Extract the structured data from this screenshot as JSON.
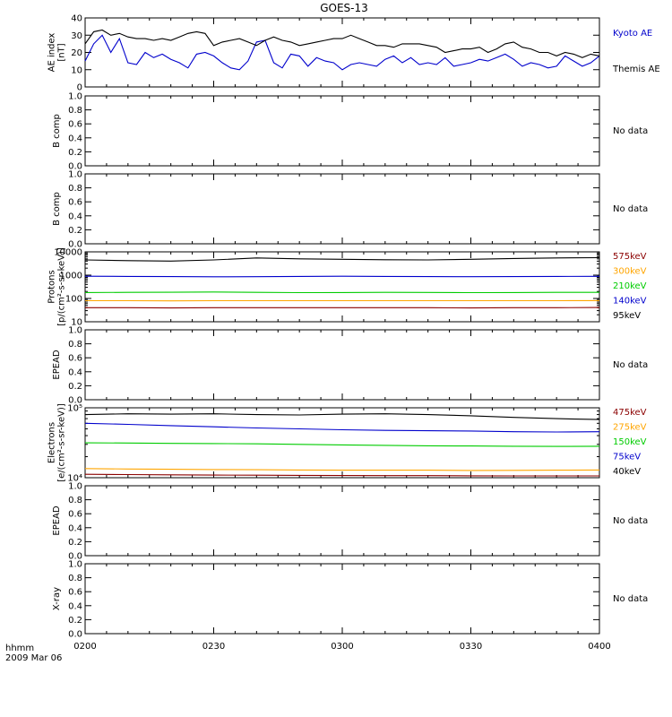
{
  "title": "GOES-13",
  "time_axis": {
    "label_line1": "hhmm",
    "label_line2": "2009 Mar 06",
    "ticks": [
      "0200",
      "0230",
      "0300",
      "0330",
      "0400"
    ],
    "range_minutes": [
      0,
      120
    ]
  },
  "chart_data": [
    {
      "type": "line",
      "panel": "ae",
      "ylabel": [
        "AE index",
        "[nT]"
      ],
      "ylim": [
        0,
        40
      ],
      "yticks": [
        "0",
        "10",
        "20",
        "30",
        "40"
      ],
      "x_minutes": [
        0,
        2,
        4,
        6,
        8,
        10,
        12,
        14,
        16,
        18,
        20,
        22,
        24,
        26,
        28,
        30,
        32,
        34,
        36,
        38,
        40,
        42,
        44,
        46,
        48,
        50,
        52,
        54,
        56,
        58,
        60,
        62,
        64,
        66,
        68,
        70,
        72,
        74,
        76,
        78,
        80,
        82,
        84,
        86,
        88,
        90,
        92,
        94,
        96,
        98,
        100,
        102,
        104,
        106,
        108,
        110,
        112,
        114,
        116,
        118,
        120
      ],
      "series": [
        {
          "name": "Kyoto AE",
          "color": "#0000cc",
          "values": [
            15,
            25,
            30,
            20,
            28,
            14,
            13,
            20,
            17,
            19,
            16,
            14,
            11,
            19,
            20,
            18,
            14,
            11,
            10,
            15,
            26,
            27,
            14,
            11,
            19,
            18,
            12,
            17,
            15,
            14,
            10,
            13,
            14,
            13,
            12,
            16,
            18,
            14,
            17,
            13,
            14,
            13,
            17,
            12,
            13,
            14,
            16,
            15,
            17,
            19,
            16,
            12,
            14,
            13,
            11,
            12,
            18,
            15,
            12,
            14,
            18
          ]
        },
        {
          "name": "Themis AE",
          "color": "#000000",
          "values": [
            25,
            32,
            33,
            30,
            31,
            29,
            28,
            28,
            27,
            28,
            27,
            29,
            31,
            32,
            31,
            24,
            26,
            27,
            28,
            26,
            24,
            27,
            29,
            27,
            26,
            24,
            25,
            26,
            27,
            28,
            28,
            30,
            28,
            26,
            24,
            24,
            23,
            25,
            25,
            25,
            24,
            23,
            20,
            21,
            22,
            22,
            23,
            20,
            22,
            25,
            26,
            23,
            22,
            20,
            20,
            18,
            20,
            19,
            17,
            19,
            18
          ]
        }
      ]
    },
    {
      "type": "line",
      "panel": "b1",
      "ylabel": [
        "B comp"
      ],
      "ylim": [
        0,
        1
      ],
      "yticks": [
        "0.0",
        "0.2",
        "0.4",
        "0.6",
        "0.8",
        "1.0"
      ],
      "status": "No data",
      "series": []
    },
    {
      "type": "line",
      "panel": "b2",
      "ylabel": [
        "B comp"
      ],
      "ylim": [
        0,
        1
      ],
      "yticks": [
        "0.0",
        "0.2",
        "0.4",
        "0.6",
        "0.8",
        "1.0"
      ],
      "status": "No data",
      "series": []
    },
    {
      "type": "line",
      "panel": "protons",
      "ylabel": [
        "Protons",
        "[p/(cm²-s-sr-keV)]"
      ],
      "log": true,
      "ylim": [
        10,
        10000
      ],
      "yticks": [
        "10",
        "100",
        "1000",
        "10000"
      ],
      "x_minutes": [
        0,
        10,
        20,
        30,
        40,
        50,
        60,
        70,
        80,
        90,
        100,
        110,
        120
      ],
      "series": [
        {
          "name": "575keV",
          "color": "#8b0000",
          "values": [
            40,
            40,
            39,
            40,
            40,
            40,
            40,
            40,
            40,
            39,
            40,
            40,
            41
          ]
        },
        {
          "name": "300keV",
          "color": "#ffa500",
          "values": [
            80,
            80,
            79,
            80,
            80,
            80,
            80,
            80,
            80,
            80,
            80,
            80,
            81
          ]
        },
        {
          "name": "210keV",
          "color": "#00cc00",
          "values": [
            180,
            182,
            185,
            190,
            182,
            178,
            180,
            182,
            181,
            178,
            180,
            182,
            183
          ]
        },
        {
          "name": "140keV",
          "color": "#0000cc",
          "values": [
            900,
            880,
            870,
            850,
            860,
            880,
            900,
            880,
            870,
            860,
            870,
            880,
            890
          ]
        },
        {
          "name": "95keV",
          "color": "#000000",
          "values": [
            4500,
            4200,
            4000,
            4500,
            5500,
            5000,
            4800,
            4600,
            4500,
            4800,
            5200,
            5500,
            5600
          ]
        }
      ]
    },
    {
      "type": "line",
      "panel": "epead1",
      "ylabel": [
        "EPEAD"
      ],
      "ylim": [
        0,
        1
      ],
      "yticks": [
        "0.0",
        "0.2",
        "0.4",
        "0.6",
        "0.8",
        "1.0"
      ],
      "status": "No data",
      "series": []
    },
    {
      "type": "line",
      "panel": "electrons",
      "ylabel": [
        "Electrons",
        "[e/(cm²-s-sr-keV)]"
      ],
      "log": true,
      "ylim": [
        10000,
        100000
      ],
      "yticks": [
        "10⁴",
        "10⁵"
      ],
      "x_minutes": [
        0,
        10,
        20,
        30,
        40,
        50,
        60,
        70,
        80,
        90,
        100,
        110,
        120
      ],
      "series": [
        {
          "name": "475keV",
          "color": "#8b0000",
          "values": [
            11200,
            11100,
            11000,
            10900,
            10850,
            10800,
            10750,
            10700,
            10700,
            10650,
            10600,
            10600,
            10600
          ]
        },
        {
          "name": "275keV",
          "color": "#ffa500",
          "values": [
            13500,
            13300,
            13200,
            13100,
            13000,
            12900,
            12800,
            12800,
            12800,
            12700,
            12750,
            12800,
            12900
          ]
        },
        {
          "name": "150keV",
          "color": "#00cc00",
          "values": [
            31500,
            31300,
            31000,
            30800,
            30500,
            30000,
            29500,
            29000,
            28600,
            28400,
            28200,
            28000,
            28200
          ]
        },
        {
          "name": "75keV",
          "color": "#0000cc",
          "values": [
            60000,
            58000,
            55500,
            53500,
            51500,
            50000,
            48500,
            47500,
            47000,
            46500,
            45500,
            45000,
            45500
          ]
        },
        {
          "name": "40keV",
          "color": "#000000",
          "values": [
            80000,
            82000,
            81000,
            82000,
            80000,
            79000,
            81000,
            82000,
            80000,
            77000,
            73000,
            70000,
            68000
          ]
        }
      ]
    },
    {
      "type": "line",
      "panel": "epead2",
      "ylabel": [
        "EPEAD"
      ],
      "ylim": [
        0,
        1
      ],
      "yticks": [
        "0.0",
        "0.2",
        "0.4",
        "0.6",
        "0.8",
        "1.0"
      ],
      "status": "No data",
      "series": []
    },
    {
      "type": "line",
      "panel": "xray",
      "ylabel": [
        "X-ray"
      ],
      "ylim": [
        0,
        1
      ],
      "yticks": [
        "0.0",
        "0.2",
        "0.4",
        "0.6",
        "0.8",
        "1.0"
      ],
      "status": "No data",
      "series": []
    }
  ]
}
